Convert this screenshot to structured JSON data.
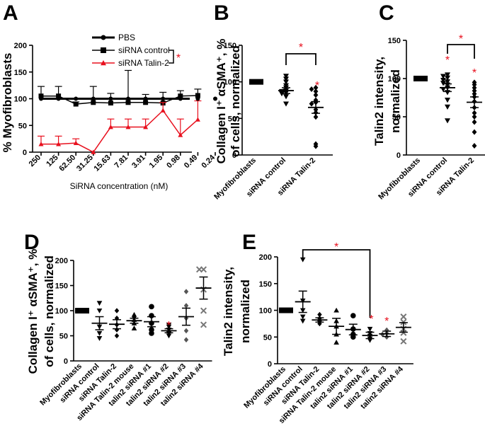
{
  "chart_data": [
    {
      "panel": "A",
      "type": "line",
      "xlabel": "SiRNA concentration (nM)",
      "ylabel": "% Myofibroblasts",
      "ylim": [
        0,
        200
      ],
      "yticks": [
        "0",
        "50",
        "100",
        "150",
        "200"
      ],
      "categories": [
        "250",
        "125",
        "62.50",
        "31.25",
        "15.63",
        "7.81",
        "3.91",
        "1.95",
        "0.98",
        "0.49",
        "0.24"
      ],
      "series": [
        {
          "name": "PBS",
          "color": "#000000",
          "marker": "circle",
          "values": [
            100,
            100,
            100,
            100,
            100,
            100,
            100,
            100,
            100,
            100,
            100
          ],
          "err": [
            0,
            0,
            0,
            0,
            0,
            0,
            0,
            0,
            0,
            0,
            0
          ]
        },
        {
          "name": "siRNA control",
          "color": "#000000",
          "marker": "square",
          "values": [
            105,
            105,
            90,
            93,
            92,
            93,
            93,
            92,
            105,
            106,
            null
          ],
          "err": [
            18,
            18,
            4,
            30,
            18,
            60,
            15,
            20,
            10,
            12,
            0
          ]
        },
        {
          "name": "siRNA Talin-2",
          "color": "#e8101e",
          "marker": "triangle",
          "values": [
            15,
            15,
            17,
            0,
            47,
            47,
            47,
            78,
            32,
            61,
            null
          ],
          "err": [
            15,
            15,
            8,
            0,
            15,
            15,
            15,
            15,
            30,
            35,
            0
          ]
        }
      ],
      "legend_position": "top-right",
      "significance": "*"
    },
    {
      "panel": "B",
      "type": "scatter",
      "ylabel_line1": "Collagen I⁺ αSMA⁺, %",
      "ylabel_line2": "of cells, normalized",
      "ylim": [
        0,
        150
      ],
      "yticks": [
        "0",
        "50",
        "100",
        "150"
      ],
      "categories": [
        "Myofibroblasts",
        "siRNA control",
        "siRNA Talin-2"
      ],
      "groups": [
        {
          "marker": "square",
          "points": [
            100,
            100,
            100,
            100,
            100,
            100,
            100,
            100,
            100,
            100
          ],
          "mean": 100,
          "sem": 0
        },
        {
          "marker": "triangle-down",
          "points": [
            108,
            104,
            100,
            95,
            92,
            88,
            87,
            85,
            84,
            80,
            70
          ],
          "mean": 88,
          "sem": 4
        },
        {
          "marker": "diamond",
          "points": [
            92,
            90,
            87,
            82,
            75,
            72,
            70,
            62,
            58,
            52,
            15,
            12
          ],
          "mean": 65,
          "sem": 8
        }
      ],
      "significance": [
        "*",
        "*"
      ]
    },
    {
      "panel": "C",
      "type": "scatter",
      "ylabel_line1": "Talin2 intensity,",
      "ylabel_line2": "normalized",
      "ylim": [
        0,
        150
      ],
      "yticks": [
        "0",
        "50",
        "100",
        "150"
      ],
      "categories": [
        "Myofibroblasts",
        "siRNA control",
        "siRNA Talin-2"
      ],
      "groups": [
        {
          "marker": "square",
          "points": [
            100,
            100,
            100,
            100,
            100,
            100,
            100,
            100,
            100,
            100
          ],
          "mean": 100,
          "sem": 0
        },
        {
          "marker": "triangle-down",
          "points": [
            105,
            103,
            101,
            98,
            96,
            94,
            92,
            88,
            86,
            82,
            72,
            63,
            45
          ],
          "mean": 88,
          "sem": 5
        },
        {
          "marker": "diamond",
          "points": [
            95,
            92,
            88,
            84,
            80,
            76,
            70,
            62,
            55,
            50,
            43,
            30,
            12
          ],
          "mean": 69,
          "sem": 7
        }
      ],
      "significance": [
        "*",
        "*",
        "*"
      ]
    },
    {
      "panel": "D",
      "type": "scatter",
      "ylabel_line1": "Collagen I⁺ αSMA⁺, %",
      "ylabel_line2": "of cells, normalized",
      "ylim": [
        0,
        200
      ],
      "yticks": [
        "0",
        "50",
        "100",
        "150",
        "200"
      ],
      "categories": [
        "Myofibroblasts",
        "siRNA control",
        "siRNA Talin-2",
        "siRNA Talin-2 mouse",
        "talin2 siRNA #1",
        "talin2 siRNA #2",
        "talin2 siRNA #3",
        "talin2 siRNA #4"
      ],
      "groups": [
        {
          "marker": "square",
          "color": "#000000",
          "points": [
            100,
            100,
            100
          ],
          "mean": 100,
          "sem": 0
        },
        {
          "marker": "triangle-down",
          "color": "#000000",
          "points": [
            115,
            100,
            68,
            55,
            45
          ],
          "mean": 75,
          "sem": 13
        },
        {
          "marker": "diamond",
          "color": "#000000",
          "points": [
            100,
            85,
            72,
            62,
            50
          ],
          "mean": 73,
          "sem": 9
        },
        {
          "marker": "triangle-up",
          "color": "#000000",
          "points": [
            92,
            88,
            82,
            75,
            65
          ],
          "mean": 80,
          "sem": 5
        },
        {
          "marker": "circle",
          "color": "#000000",
          "points": [
            108,
            90,
            75,
            62,
            55
          ],
          "mean": 78,
          "sem": 10
        },
        {
          "marker": "triangle-down",
          "color": "#000000",
          "points": [
            72,
            68,
            62,
            55,
            50
          ],
          "mean": 60,
          "sem": 4
        },
        {
          "marker": "diamond",
          "color": "#555555",
          "points": [
            138,
            110,
            85,
            60,
            42
          ],
          "mean": 88,
          "sem": 17
        },
        {
          "marker": "cross",
          "color": "#777777",
          "points": [
            182,
            182,
            142,
            100,
            72
          ],
          "mean": 145,
          "sem": 22
        }
      ],
      "significance": [
        "*"
      ]
    },
    {
      "panel": "E",
      "type": "scatter",
      "ylabel_line1": "Talin2 intensity,",
      "ylabel_line2": "normalized",
      "ylim": [
        0,
        200
      ],
      "yticks": [
        "0",
        "50",
        "100",
        "150",
        "200"
      ],
      "categories": [
        "Myofibroblasts",
        "siRNA control",
        "siRNA Talin-2",
        "siRNA Talin-2 mouse",
        "talin2 siRNA #1",
        "talin2 siRNA #2",
        "talin2 siRNA #3",
        "talin2 siRNA #4"
      ],
      "groups": [
        {
          "marker": "square",
          "color": "#000000",
          "points": [
            100,
            100,
            100
          ],
          "mean": 100,
          "sem": 0
        },
        {
          "marker": "triangle-down",
          "color": "#000000",
          "points": [
            195,
            118,
            100,
            88,
            80
          ],
          "mean": 116,
          "sem": 20
        },
        {
          "marker": "diamond",
          "color": "#000000",
          "points": [
            92,
            85,
            80,
            75
          ],
          "mean": 82,
          "sem": 4
        },
        {
          "marker": "triangle-up",
          "color": "#000000",
          "points": [
            100,
            80,
            70,
            55,
            40
          ],
          "mean": 70,
          "sem": 15
        },
        {
          "marker": "circle",
          "color": "#000000",
          "points": [
            90,
            65,
            55,
            50
          ],
          "mean": 64,
          "sem": 10
        },
        {
          "marker": "triangle-down",
          "color": "#000000",
          "points": [
            65,
            57,
            52,
            47,
            44
          ],
          "mean": 53,
          "sem": 6
        },
        {
          "marker": "diamond",
          "color": "#555555",
          "points": [
            63,
            57,
            55,
            50
          ],
          "mean": 56,
          "sem": 5
        },
        {
          "marker": "cross",
          "color": "#777777",
          "points": [
            88,
            78,
            65,
            58,
            42
          ],
          "mean": 68,
          "sem": 9
        }
      ],
      "significance": [
        "*",
        "*",
        "*"
      ]
    }
  ],
  "panel_labels": [
    "A",
    "B",
    "C",
    "D",
    "E"
  ],
  "significance_mark": "*",
  "colors": {
    "black": "#000000",
    "red": "#e8101e",
    "dark_gray": "#555555",
    "gray": "#777777"
  }
}
